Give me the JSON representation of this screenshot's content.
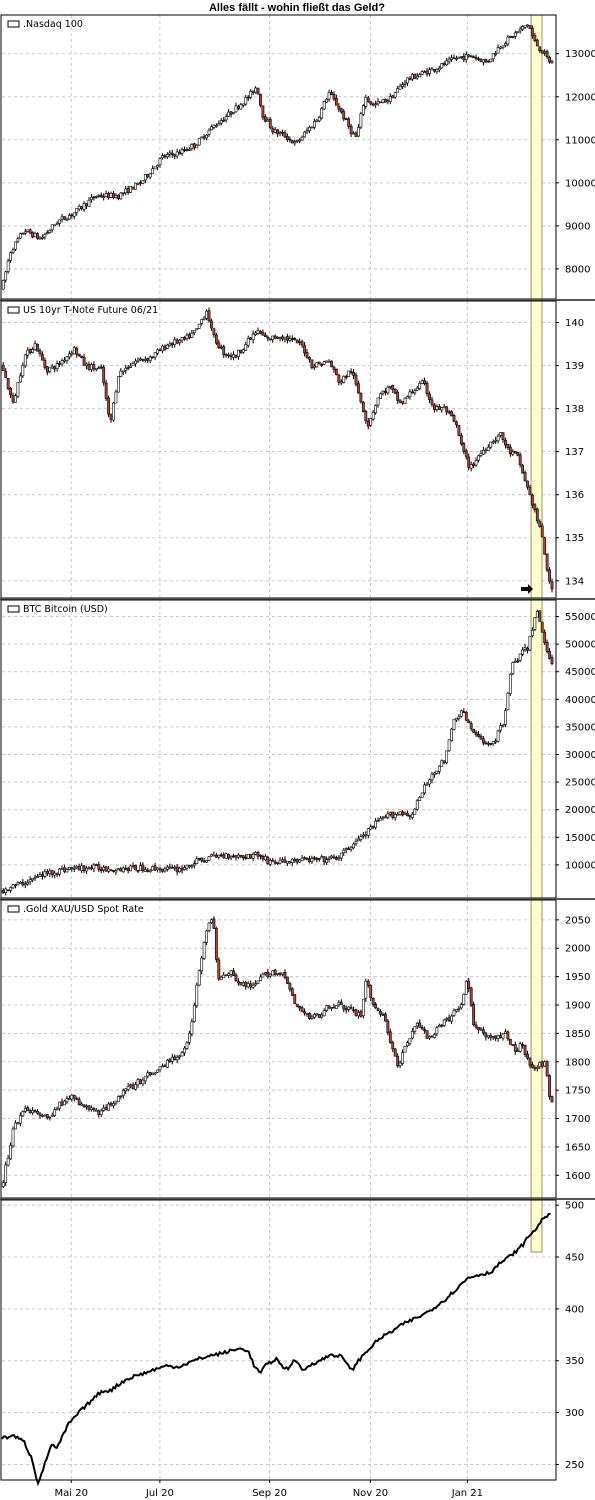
{
  "title": "Alles fällt - wohin fließt das Geld?",
  "colors": {
    "up": "#ffffff",
    "down": "#b0422e",
    "grid": "#c8c8c8",
    "highlight": "#ffffcc",
    "highlight_border": "#999966",
    "line": "#000000"
  },
  "x_axis": {
    "labels": [
      "Mai 20",
      "Jul 20",
      "Sep 20",
      "Nov 20",
      "Jan 21"
    ],
    "range": [
      0,
      1
    ],
    "label_positions": [
      0.125,
      0.285,
      0.483,
      0.665,
      0.84
    ],
    "highlight_range": [
      0.955,
      1.0
    ]
  },
  "chart_data": [
    {
      "type": "candlestick",
      "legend": ".Nasdaq 100",
      "ylim": [
        7300,
        13900
      ],
      "ticks": [
        8000,
        9000,
        10000,
        11000,
        12000,
        13000
      ],
      "points": [
        [
          0.0,
          7550
        ],
        [
          0.015,
          8400
        ],
        [
          0.04,
          8900
        ],
        [
          0.07,
          8700
        ],
        [
          0.1,
          9100
        ],
        [
          0.13,
          9300
        ],
        [
          0.17,
          9700
        ],
        [
          0.21,
          9700
        ],
        [
          0.25,
          10000
        ],
        [
          0.29,
          10600
        ],
        [
          0.32,
          10700
        ],
        [
          0.35,
          10900
        ],
        [
          0.38,
          11300
        ],
        [
          0.41,
          11600
        ],
        [
          0.445,
          12000
        ],
        [
          0.46,
          12250
        ],
        [
          0.47,
          11600
        ],
        [
          0.49,
          11200
        ],
        [
          0.51,
          11100
        ],
        [
          0.53,
          10900
        ],
        [
          0.55,
          11200
        ],
        [
          0.57,
          11500
        ],
        [
          0.59,
          12100
        ],
        [
          0.61,
          11700
        ],
        [
          0.63,
          11200
        ],
        [
          0.64,
          11050
        ],
        [
          0.655,
          12000
        ],
        [
          0.67,
          11800
        ],
        [
          0.7,
          11950
        ],
        [
          0.73,
          12400
        ],
        [
          0.76,
          12550
        ],
        [
          0.79,
          12700
        ],
        [
          0.82,
          12900
        ],
        [
          0.85,
          12950
        ],
        [
          0.875,
          12800
        ],
        [
          0.9,
          13200
        ],
        [
          0.92,
          13400
        ],
        [
          0.935,
          13550
        ],
        [
          0.95,
          13700
        ],
        [
          0.96,
          13300
        ],
        [
          0.975,
          13050
        ],
        [
          0.99,
          12800
        ]
      ]
    },
    {
      "type": "candlestick",
      "legend": "US 10yr T-Note Future 06/21",
      "ylim": [
        133.6,
        140.5
      ],
      "ticks": [
        134,
        135,
        136,
        137,
        138,
        139,
        140
      ],
      "points": [
        [
          0.0,
          139.0
        ],
        [
          0.02,
          138.1
        ],
        [
          0.04,
          139.2
        ],
        [
          0.06,
          139.5
        ],
        [
          0.08,
          138.9
        ],
        [
          0.1,
          139.0
        ],
        [
          0.13,
          139.4
        ],
        [
          0.15,
          139.0
        ],
        [
          0.18,
          138.9
        ],
        [
          0.195,
          137.6
        ],
        [
          0.21,
          138.8
        ],
        [
          0.24,
          139.1
        ],
        [
          0.27,
          139.2
        ],
        [
          0.3,
          139.5
        ],
        [
          0.33,
          139.6
        ],
        [
          0.35,
          139.8
        ],
        [
          0.37,
          140.3
        ],
        [
          0.38,
          139.7
        ],
        [
          0.4,
          139.3
        ],
        [
          0.42,
          139.2
        ],
        [
          0.44,
          139.5
        ],
        [
          0.46,
          139.8
        ],
        [
          0.48,
          139.6
        ],
        [
          0.5,
          139.7
        ],
        [
          0.52,
          139.6
        ],
        [
          0.54,
          139.5
        ],
        [
          0.56,
          139.0
        ],
        [
          0.59,
          139.1
        ],
        [
          0.61,
          138.6
        ],
        [
          0.63,
          138.9
        ],
        [
          0.65,
          138.1
        ],
        [
          0.66,
          137.6
        ],
        [
          0.68,
          138.3
        ],
        [
          0.7,
          138.5
        ],
        [
          0.72,
          138.1
        ],
        [
          0.74,
          138.4
        ],
        [
          0.76,
          138.6
        ],
        [
          0.78,
          138.0
        ],
        [
          0.8,
          138.0
        ],
        [
          0.82,
          137.6
        ],
        [
          0.83,
          137.1
        ],
        [
          0.845,
          136.6
        ],
        [
          0.86,
          136.9
        ],
        [
          0.88,
          137.2
        ],
        [
          0.9,
          137.4
        ],
        [
          0.915,
          137.0
        ],
        [
          0.93,
          136.9
        ],
        [
          0.95,
          136.1
        ],
        [
          0.96,
          135.7
        ],
        [
          0.975,
          135.0
        ],
        [
          0.99,
          133.8
        ]
      ]
    },
    {
      "type": "candlestick",
      "legend": "BTC Bitcoin (USD)",
      "ylim": [
        4000,
        58000
      ],
      "ticks": [
        10000,
        15000,
        20000,
        25000,
        30000,
        35000,
        40000,
        45000,
        50000,
        55000
      ],
      "points": [
        [
          0.0,
          5400
        ],
        [
          0.04,
          6800
        ],
        [
          0.08,
          8500
        ],
        [
          0.12,
          9300
        ],
        [
          0.16,
          9500
        ],
        [
          0.2,
          9300
        ],
        [
          0.24,
          9400
        ],
        [
          0.28,
          9300
        ],
        [
          0.32,
          9200
        ],
        [
          0.35,
          10500
        ],
        [
          0.38,
          11500
        ],
        [
          0.41,
          11800
        ],
        [
          0.44,
          11500
        ],
        [
          0.46,
          12000
        ],
        [
          0.48,
          10700
        ],
        [
          0.5,
          10500
        ],
        [
          0.53,
          10800
        ],
        [
          0.56,
          10900
        ],
        [
          0.59,
          11000
        ],
        [
          0.61,
          11500
        ],
        [
          0.63,
          13500
        ],
        [
          0.655,
          15500
        ],
        [
          0.68,
          18000
        ],
        [
          0.7,
          19000
        ],
        [
          0.72,
          19500
        ],
        [
          0.74,
          19000
        ],
        [
          0.76,
          23500
        ],
        [
          0.78,
          27000
        ],
        [
          0.8,
          29000
        ],
        [
          0.815,
          36000
        ],
        [
          0.83,
          38000
        ],
        [
          0.85,
          34000
        ],
        [
          0.87,
          32000
        ],
        [
          0.89,
          32500
        ],
        [
          0.905,
          36000
        ],
        [
          0.92,
          46000
        ],
        [
          0.935,
          48000
        ],
        [
          0.95,
          49500
        ],
        [
          0.965,
          56500
        ],
        [
          0.975,
          52000
        ],
        [
          0.985,
          48500
        ],
        [
          0.995,
          46500
        ]
      ]
    },
    {
      "type": "candlestick",
      "legend": ".Gold XAU/USD Spot Rate",
      "ylim": [
        1560,
        2085
      ],
      "ticks": [
        1600,
        1650,
        1700,
        1750,
        1800,
        1850,
        1900,
        1950,
        2000,
        2050
      ],
      "points": [
        [
          0.0,
          1580
        ],
        [
          0.02,
          1680
        ],
        [
          0.04,
          1720
        ],
        [
          0.06,
          1710
        ],
        [
          0.08,
          1700
        ],
        [
          0.1,
          1720
        ],
        [
          0.12,
          1740
        ],
        [
          0.15,
          1720
        ],
        [
          0.18,
          1710
        ],
        [
          0.21,
          1740
        ],
        [
          0.24,
          1760
        ],
        [
          0.27,
          1780
        ],
        [
          0.3,
          1800
        ],
        [
          0.32,
          1810
        ],
        [
          0.34,
          1850
        ],
        [
          0.355,
          1960
        ],
        [
          0.37,
          2030
        ],
        [
          0.38,
          2060
        ],
        [
          0.39,
          1950
        ],
        [
          0.41,
          1960
        ],
        [
          0.43,
          1940
        ],
        [
          0.45,
          1930
        ],
        [
          0.47,
          1950
        ],
        [
          0.49,
          1960
        ],
        [
          0.51,
          1950
        ],
        [
          0.53,
          1900
        ],
        [
          0.55,
          1880
        ],
        [
          0.57,
          1880
        ],
        [
          0.59,
          1900
        ],
        [
          0.61,
          1900
        ],
        [
          0.63,
          1890
        ],
        [
          0.65,
          1880
        ],
        [
          0.655,
          1950
        ],
        [
          0.67,
          1900
        ],
        [
          0.69,
          1880
        ],
        [
          0.7,
          1840
        ],
        [
          0.715,
          1790
        ],
        [
          0.73,
          1830
        ],
        [
          0.75,
          1870
        ],
        [
          0.77,
          1840
        ],
        [
          0.79,
          1860
        ],
        [
          0.81,
          1880
        ],
        [
          0.83,
          1900
        ],
        [
          0.84,
          1950
        ],
        [
          0.85,
          1870
        ],
        [
          0.87,
          1850
        ],
        [
          0.89,
          1840
        ],
        [
          0.91,
          1850
        ],
        [
          0.925,
          1820
        ],
        [
          0.94,
          1830
        ],
        [
          0.95,
          1800
        ],
        [
          0.965,
          1790
        ],
        [
          0.98,
          1800
        ],
        [
          0.99,
          1730
        ]
      ]
    },
    {
      "type": "line",
      "legend": "",
      "ylim": [
        235,
        505
      ],
      "ticks": [
        250,
        300,
        350,
        400,
        450,
        500
      ],
      "points": [
        [
          0.0,
          275
        ],
        [
          0.02,
          278
        ],
        [
          0.04,
          272
        ],
        [
          0.055,
          255
        ],
        [
          0.065,
          232
        ],
        [
          0.075,
          245
        ],
        [
          0.09,
          270
        ],
        [
          0.1,
          265
        ],
        [
          0.12,
          288
        ],
        [
          0.14,
          300
        ],
        [
          0.16,
          310
        ],
        [
          0.18,
          320
        ],
        [
          0.2,
          322
        ],
        [
          0.22,
          330
        ],
        [
          0.24,
          335
        ],
        [
          0.26,
          338
        ],
        [
          0.28,
          342
        ],
        [
          0.3,
          345
        ],
        [
          0.32,
          344
        ],
        [
          0.34,
          348
        ],
        [
          0.36,
          352
        ],
        [
          0.38,
          355
        ],
        [
          0.4,
          357
        ],
        [
          0.42,
          360
        ],
        [
          0.44,
          362
        ],
        [
          0.45,
          358
        ],
        [
          0.46,
          345
        ],
        [
          0.47,
          338
        ],
        [
          0.48,
          345
        ],
        [
          0.5,
          352
        ],
        [
          0.51,
          345
        ],
        [
          0.52,
          342
        ],
        [
          0.53,
          349
        ],
        [
          0.54,
          348
        ],
        [
          0.55,
          340
        ],
        [
          0.56,
          346
        ],
        [
          0.58,
          350
        ],
        [
          0.6,
          356
        ],
        [
          0.62,
          354
        ],
        [
          0.63,
          345
        ],
        [
          0.64,
          342
        ],
        [
          0.65,
          350
        ],
        [
          0.66,
          356
        ],
        [
          0.67,
          362
        ],
        [
          0.69,
          372
        ],
        [
          0.71,
          378
        ],
        [
          0.73,
          385
        ],
        [
          0.75,
          390
        ],
        [
          0.77,
          395
        ],
        [
          0.79,
          402
        ],
        [
          0.81,
          410
        ],
        [
          0.83,
          420
        ],
        [
          0.85,
          430
        ],
        [
          0.87,
          433
        ],
        [
          0.89,
          435
        ],
        [
          0.91,
          445
        ],
        [
          0.93,
          452
        ],
        [
          0.95,
          462
        ],
        [
          0.96,
          470
        ],
        [
          0.975,
          478
        ],
        [
          0.99,
          490
        ]
      ]
    }
  ]
}
